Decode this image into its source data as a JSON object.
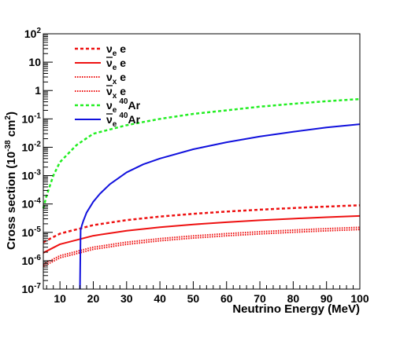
{
  "chart_data": {
    "type": "line",
    "xlabel": "Neutrino Energy (MeV)",
    "ylabel": {
      "prefix": "Cross section (10",
      "exp": "-38",
      "mid": " cm",
      "sq": "2",
      "suffix": ")"
    },
    "xlim": [
      5,
      100
    ],
    "ylim": [
      1e-07,
      100
    ],
    "yscale": "log",
    "xticks": [
      "10",
      "20",
      "30",
      "40",
      "50",
      "60",
      "70",
      "80",
      "90",
      "100"
    ],
    "xtick_values": [
      10,
      20,
      30,
      40,
      50,
      60,
      70,
      80,
      90,
      100
    ],
    "yticks": [
      {
        "v": 100,
        "base": "10",
        "exp": "2"
      },
      {
        "v": 10,
        "base": "10",
        "exp": ""
      },
      {
        "v": 1,
        "base": "1",
        "exp": ""
      },
      {
        "v": 0.1,
        "base": "10",
        "exp": "-1"
      },
      {
        "v": 0.01,
        "base": "10",
        "exp": "-2"
      },
      {
        "v": 0.001,
        "base": "10",
        "exp": "-3"
      },
      {
        "v": 0.0001,
        "base": "10",
        "exp": "-4"
      },
      {
        "v": 1e-05,
        "base": "10",
        "exp": "-5"
      },
      {
        "v": 1e-06,
        "base": "10",
        "exp": "-6"
      },
      {
        "v": 1e-07,
        "base": "10",
        "exp": "-7"
      }
    ],
    "legend_position": "top-left",
    "series": [
      {
        "key": "nue_e",
        "label": {
          "sym": "ν",
          "bar": false,
          "sub": "e",
          "sup": "",
          "tail": " e"
        },
        "color": "#ee1111",
        "dash": "4,3",
        "width": 2.5,
        "x": [
          5,
          10,
          20,
          30,
          40,
          50,
          60,
          70,
          80,
          90,
          100
        ],
        "y": [
          4.5e-06,
          9e-06,
          1.8e-05,
          2.7e-05,
          3.6e-05,
          4.5e-05,
          5.4e-05,
          6.3e-05,
          7.2e-05,
          8.1e-05,
          9e-05
        ]
      },
      {
        "key": "nuebar_e",
        "label": {
          "sym": "ν",
          "bar": true,
          "sub": "e",
          "sup": "",
          "tail": " e"
        },
        "color": "#ee1111",
        "dash": "",
        "width": 2,
        "x": [
          5,
          10,
          20,
          30,
          40,
          50,
          60,
          70,
          80,
          90,
          100
        ],
        "y": [
          1.9e-06,
          3.8e-06,
          7.6e-06,
          1.14e-05,
          1.52e-05,
          1.9e-05,
          2.28e-05,
          2.66e-05,
          3.04e-05,
          3.42e-05,
          3.8e-05
        ]
      },
      {
        "key": "nux_e",
        "label": {
          "sym": "ν",
          "bar": false,
          "sub": "x",
          "sup": "",
          "tail": " e"
        },
        "color": "#ee1111",
        "dash": "1.5,1.5",
        "width": 2,
        "x": [
          5,
          10,
          20,
          30,
          40,
          50,
          60,
          70,
          80,
          90,
          100
        ],
        "y": [
          7.5e-07,
          1.5e-06,
          3e-06,
          4.5e-06,
          6e-06,
          7.5e-06,
          9e-06,
          1.05e-05,
          1.2e-05,
          1.35e-05,
          1.5e-05
        ]
      },
      {
        "key": "nuxbar_e",
        "label": {
          "sym": "ν",
          "bar": true,
          "sub": "x",
          "sup": "",
          "tail": " e"
        },
        "color": "#ee1111",
        "dash": "1.5,1.5",
        "width": 2,
        "x": [
          5,
          10,
          20,
          30,
          40,
          50,
          60,
          70,
          80,
          90,
          100
        ],
        "y": [
          6.3e-07,
          1.26e-06,
          2.52e-06,
          3.78e-06,
          5.04e-06,
          6.3e-06,
          7.56e-06,
          8.82e-06,
          1.008e-05,
          1.134e-05,
          1.26e-05
        ]
      },
      {
        "key": "nue_ar",
        "label": {
          "sym": "ν",
          "bar": false,
          "sub": "e",
          "sup": "40",
          "tail": "Ar"
        },
        "color": "#22ee22",
        "dash": "4,3",
        "width": 2.5,
        "x": [
          5,
          6,
          8,
          10,
          15,
          20,
          30,
          40,
          50,
          60,
          70,
          80,
          90,
          100
        ],
        "y": [
          7e-05,
          0.0002,
          0.001,
          0.003,
          0.012,
          0.03,
          0.06,
          0.1,
          0.15,
          0.2,
          0.27,
          0.34,
          0.42,
          0.5
        ]
      },
      {
        "key": "nuebar_ar",
        "label": {
          "sym": "ν",
          "bar": true,
          "sub": "e",
          "sup": "40",
          "tail": "Ar"
        },
        "color": "#1111dd",
        "dash": "",
        "width": 2,
        "x": [
          16,
          16.2,
          16.6,
          17,
          18,
          20,
          22,
          25,
          30,
          35,
          40,
          50,
          60,
          70,
          80,
          90,
          100
        ],
        "y": [
          1e-07,
          1.2e-05,
          1.8e-05,
          2.5e-05,
          5e-05,
          0.00012,
          0.00023,
          0.0005,
          0.0013,
          0.0025,
          0.004,
          0.0085,
          0.015,
          0.024,
          0.035,
          0.05,
          0.065
        ]
      }
    ]
  }
}
